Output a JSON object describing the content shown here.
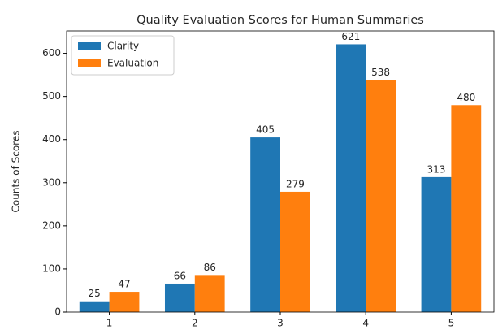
{
  "chart_data": {
    "type": "bar",
    "title": "Quality Evaluation Scores for Human Summaries",
    "y_label": "Counts of Scores",
    "categories": [
      "1",
      "2",
      "3",
      "4",
      "5"
    ],
    "series": [
      {
        "name": "Clarity",
        "color": "#1f77b4",
        "values": [
          25,
          66,
          405,
          621,
          313
        ]
      },
      {
        "name": "Evaluation",
        "color": "#ff7f0e",
        "values": [
          47,
          86,
          279,
          538,
          480
        ]
      }
    ],
    "ylim": [
      0,
      652
    ],
    "yticks": [
      0,
      100,
      200,
      300,
      400,
      500,
      600
    ],
    "legend": "upper left"
  }
}
